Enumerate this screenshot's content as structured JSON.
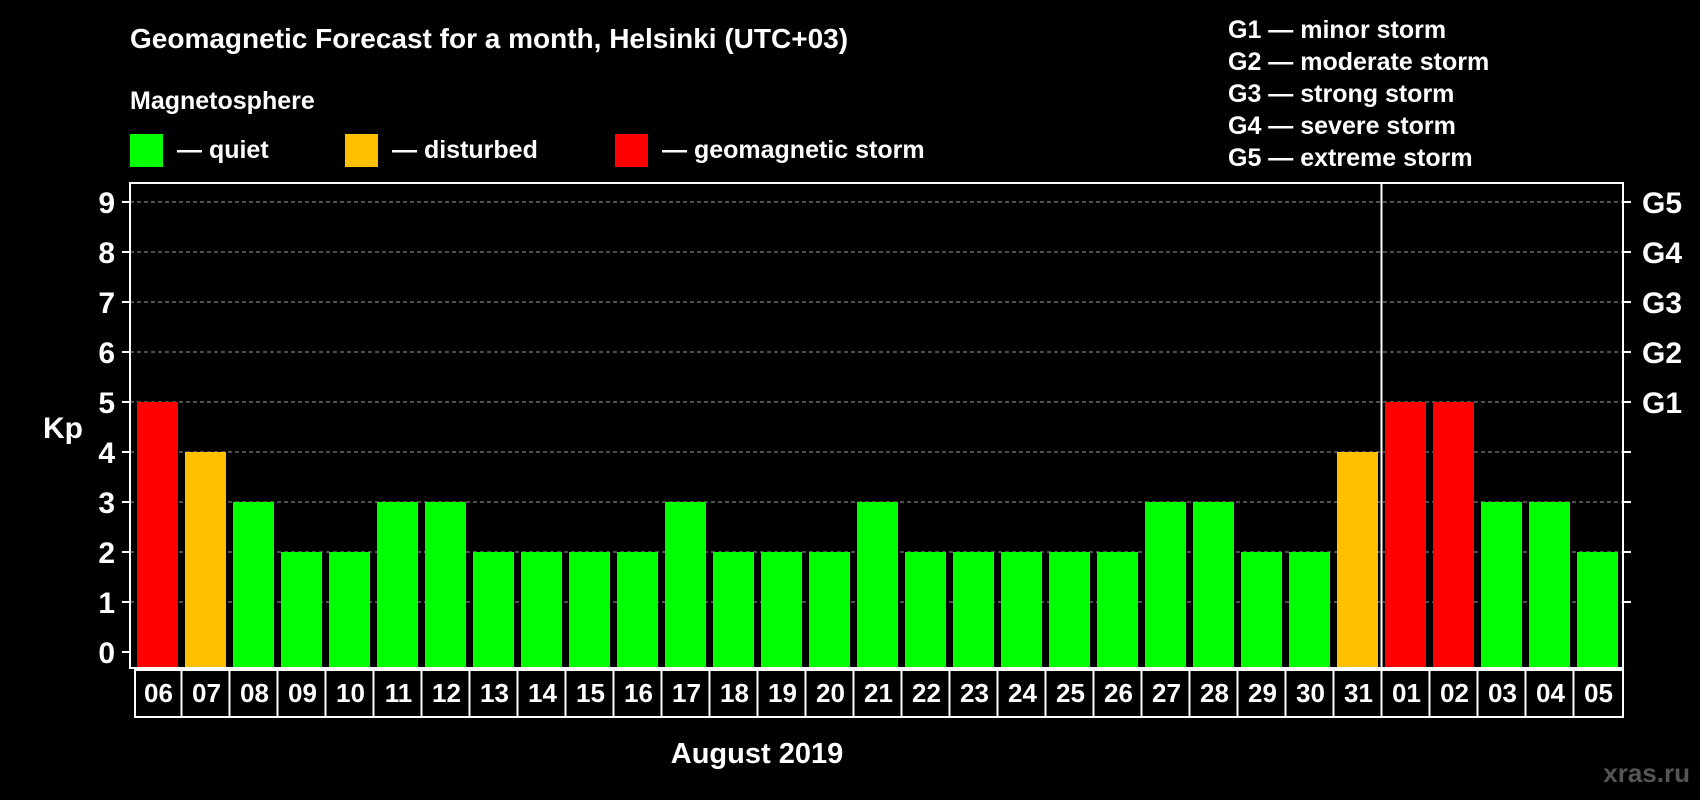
{
  "chart_data": {
    "type": "bar",
    "title": "Geomagnetic Forecast for a month, Helsinki (UTC+03)",
    "subtitle": "Magnetosphere",
    "ylabel": "Kp",
    "xlabel": "August 2019",
    "ylim": [
      0,
      9
    ],
    "yticks": [
      "0",
      "1",
      "2",
      "3",
      "4",
      "5",
      "6",
      "7",
      "8",
      "9"
    ],
    "right_axis_ticks": [
      {
        "kp": 5,
        "label": "G1"
      },
      {
        "kp": 6,
        "label": "G2"
      },
      {
        "kp": 7,
        "label": "G3"
      },
      {
        "kp": 8,
        "label": "G4"
      },
      {
        "kp": 9,
        "label": "G5"
      }
    ],
    "grid": true,
    "categories": [
      "06",
      "07",
      "08",
      "09",
      "10",
      "11",
      "12",
      "13",
      "14",
      "15",
      "16",
      "17",
      "18",
      "19",
      "20",
      "21",
      "22",
      "23",
      "24",
      "25",
      "26",
      "27",
      "28",
      "29",
      "30",
      "31",
      "01",
      "02",
      "03",
      "04",
      "05"
    ],
    "values": [
      5,
      4,
      3,
      2,
      2,
      3,
      3,
      2,
      2,
      2,
      2,
      3,
      2,
      2,
      2,
      3,
      2,
      2,
      2,
      2,
      2,
      3,
      3,
      2,
      2,
      4,
      5,
      5,
      3,
      3,
      2
    ],
    "month_separator_after": "31",
    "status_legend": [
      {
        "label": "— quiet",
        "color": "#00ff00"
      },
      {
        "label": "— disturbed",
        "color": "#ffc000"
      },
      {
        "label": "— geomagnetic storm",
        "color": "#ff0000"
      }
    ],
    "storm_legend": [
      "G1 — minor storm",
      "G2 — moderate storm",
      "G3 — strong storm",
      "G4 — severe storm",
      "G5 — extreme storm"
    ],
    "watermark": "xras.ru"
  }
}
